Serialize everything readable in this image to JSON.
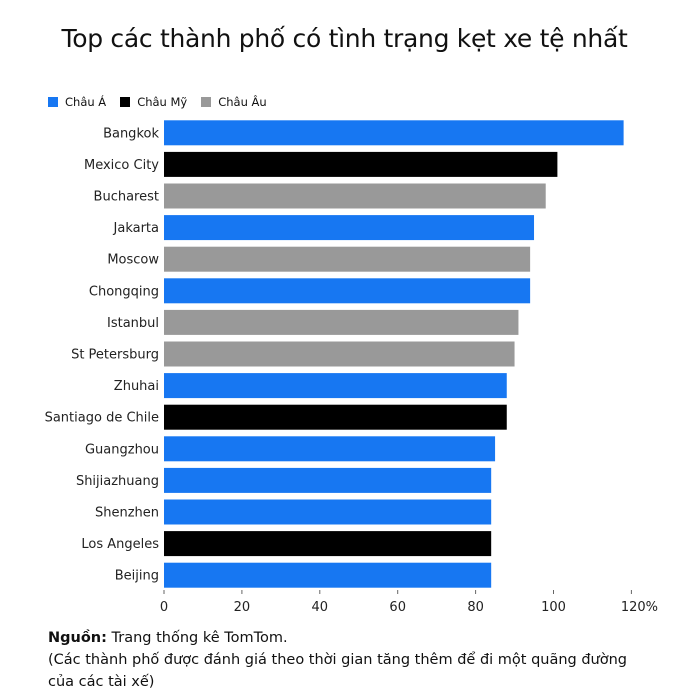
{
  "title": "Top các thành phố có tình trạng kẹt xe tệ nhất",
  "legend": [
    {
      "label": "Châu Á",
      "color": "#1777f2"
    },
    {
      "label": "Châu Mỹ",
      "color": "#000000"
    },
    {
      "label": "Châu Âu",
      "color": "#999999"
    }
  ],
  "footer": {
    "source_label": "Nguồn:",
    "source_text": " Trang thống kê TomTom.",
    "note": "(Các thành phố được đánh giá theo thời gian tăng thêm để đi một quãng đường của các tài xế)"
  },
  "chart_data": {
    "type": "bar",
    "orientation": "horizontal",
    "categories": [
      "Bangkok",
      "Mexico City",
      "Bucharest",
      "Jakarta",
      "Moscow",
      "Chongqing",
      "Istanbul",
      "St Petersburg",
      "Zhuhai",
      "Santiago de Chile",
      "Guangzhou",
      "Shijiazhuang",
      "Shenzhen",
      "Los Angeles",
      "Beijing"
    ],
    "values": [
      118,
      101,
      98,
      95,
      94,
      94,
      91,
      90,
      88,
      88,
      85,
      84,
      84,
      84,
      84
    ],
    "groups": [
      "Châu Á",
      "Châu Mỹ",
      "Châu Âu",
      "Châu Á",
      "Châu Âu",
      "Châu Á",
      "Châu Âu",
      "Châu Âu",
      "Châu Á",
      "Châu Mỹ",
      "Châu Á",
      "Châu Á",
      "Châu Á",
      "Châu Mỹ",
      "Châu Á"
    ],
    "xticks": [
      "0",
      "20",
      "40",
      "60",
      "80",
      "100",
      "120%"
    ],
    "xlim": [
      0,
      120
    ],
    "grid": false,
    "legend_position": "top-left"
  }
}
